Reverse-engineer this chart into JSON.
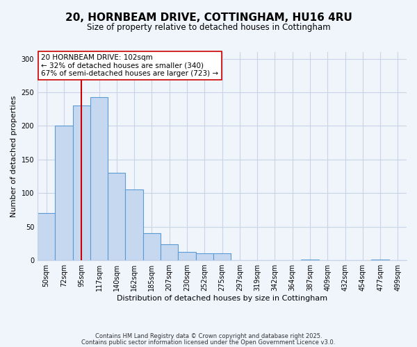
{
  "title": "20, HORNBEAM DRIVE, COTTINGHAM, HU16 4RU",
  "subtitle": "Size of property relative to detached houses in Cottingham",
  "xlabel": "Distribution of detached houses by size in Cottingham",
  "ylabel": "Number of detached properties",
  "bar_labels": [
    "50sqm",
    "72sqm",
    "95sqm",
    "117sqm",
    "140sqm",
    "162sqm",
    "185sqm",
    "207sqm",
    "230sqm",
    "252sqm",
    "275sqm",
    "297sqm",
    "319sqm",
    "342sqm",
    "364sqm",
    "387sqm",
    "409sqm",
    "432sqm",
    "454sqm",
    "477sqm",
    "499sqm"
  ],
  "bar_values": [
    70,
    200,
    230,
    243,
    130,
    105,
    40,
    24,
    12,
    10,
    10,
    0,
    0,
    0,
    0,
    1,
    0,
    0,
    0,
    1,
    0
  ],
  "bar_color": "#c5d8f0",
  "bar_edge_color": "#5b9bd5",
  "vline_color": "#cc0000",
  "annotation_title": "20 HORNBEAM DRIVE: 102sqm",
  "annotation_line1": "← 32% of detached houses are smaller (340)",
  "annotation_line2": "67% of semi-detached houses are larger (723) →",
  "annotation_box_color": "#ffffff",
  "annotation_box_edge": "#cc0000",
  "ylim": [
    0,
    310
  ],
  "yticks": [
    0,
    50,
    100,
    150,
    200,
    250,
    300
  ],
  "footer1": "Contains HM Land Registry data © Crown copyright and database right 2025.",
  "footer2": "Contains public sector information licensed under the Open Government Licence v3.0.",
  "bg_color": "#f0f4fb",
  "grid_color": "#c8d4e8",
  "title_fontsize": 11,
  "subtitle_fontsize": 8.5,
  "axis_label_fontsize": 8,
  "tick_fontsize": 7
}
